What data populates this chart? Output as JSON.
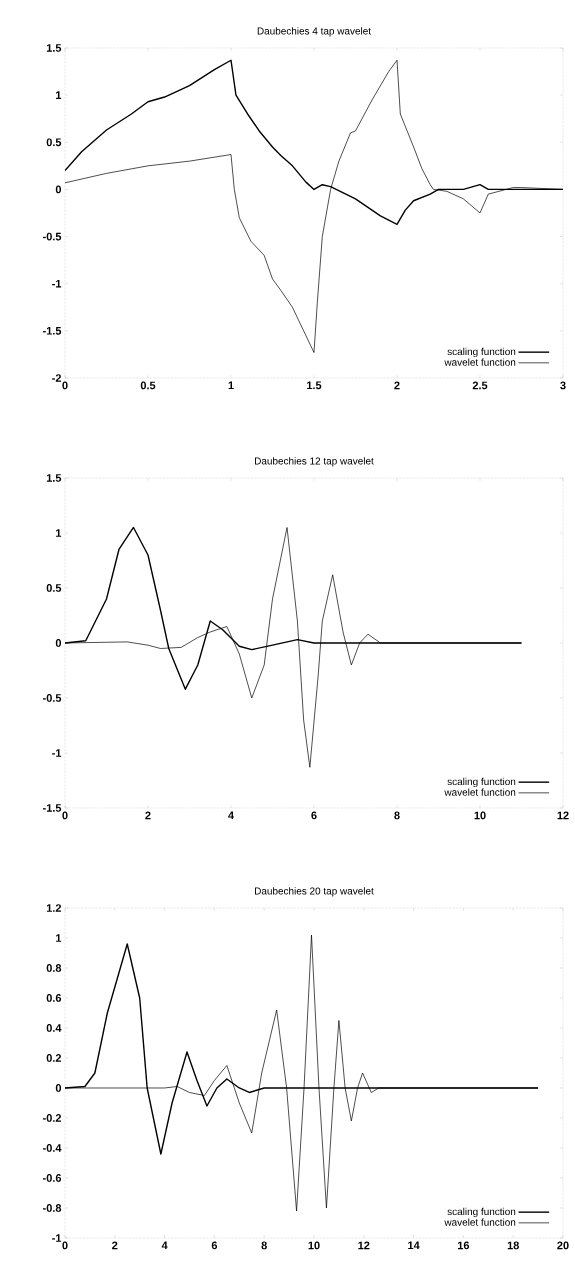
{
  "chart_data": [
    {
      "type": "line",
      "title": "Daubechies 4 tap wavelet",
      "xlim": [
        0,
        3
      ],
      "ylim": [
        -2,
        1.5
      ],
      "xticks": [
        0,
        0.5,
        1,
        1.5,
        2,
        2.5,
        3
      ],
      "yticks": [
        -2,
        -1.5,
        -1,
        -0.5,
        0,
        0.5,
        1,
        1.5
      ],
      "legend": "bottom right",
      "series": [
        {
          "name": "scaling function",
          "color": "#000000",
          "x": [
            0,
            0.1,
            0.25,
            0.4,
            0.5,
            0.6,
            0.75,
            0.9,
            1.0,
            1.03,
            1.1,
            1.17,
            1.25,
            1.3,
            1.37,
            1.45,
            1.5,
            1.55,
            1.6,
            1.75,
            1.9,
            2.0,
            2.05,
            2.1,
            2.2,
            2.25,
            2.4,
            2.5,
            2.55,
            2.75,
            3
          ],
          "values": [
            0.2,
            0.4,
            0.63,
            0.8,
            0.93,
            0.98,
            1.1,
            1.27,
            1.37,
            1.0,
            0.8,
            0.62,
            0.45,
            0.36,
            0.25,
            0.08,
            0.0,
            0.05,
            0.03,
            -0.1,
            -0.28,
            -0.37,
            -0.22,
            -0.12,
            -0.05,
            0,
            0,
            0.05,
            0,
            0,
            0
          ]
        },
        {
          "name": "wavelet function",
          "color": "#000000",
          "x": [
            0,
            0.25,
            0.5,
            0.75,
            1.0,
            1.02,
            1.05,
            1.12,
            1.2,
            1.25,
            1.3,
            1.37,
            1.5,
            1.52,
            1.55,
            1.6,
            1.65,
            1.72,
            1.75,
            1.85,
            1.95,
            2.0,
            2.02,
            2.1,
            2.15,
            2.2,
            2.22,
            2.3,
            2.4,
            2.5,
            2.55,
            2.7,
            2.75,
            3
          ],
          "values": [
            0.07,
            0.17,
            0.25,
            0.3,
            0.37,
            0.0,
            -0.3,
            -0.55,
            -0.7,
            -0.95,
            -1.07,
            -1.25,
            -1.73,
            -1.2,
            -0.5,
            0.0,
            0.3,
            0.6,
            0.62,
            0.95,
            1.25,
            1.37,
            0.8,
            0.45,
            0.22,
            0.05,
            0,
            -0.02,
            -0.1,
            -0.25,
            -0.05,
            0.02,
            0.02,
            0
          ]
        }
      ]
    },
    {
      "type": "line",
      "title": "Daubechies 12 tap wavelet",
      "xlim": [
        0,
        12
      ],
      "ylim": [
        -1.5,
        1.5
      ],
      "xticks": [
        0,
        2,
        4,
        6,
        8,
        10,
        12
      ],
      "yticks": [
        -1.5,
        -1,
        -0.5,
        0,
        0.5,
        1,
        1.5
      ],
      "legend": "bottom right",
      "series": [
        {
          "name": "scaling function",
          "color": "#000000",
          "x": [
            0,
            0.5,
            1.0,
            1.3,
            1.65,
            2.0,
            2.3,
            2.5,
            2.9,
            3.2,
            3.5,
            3.8,
            4.2,
            4.5,
            5.0,
            5.6,
            6.0,
            7,
            8,
            11
          ],
          "values": [
            0,
            0.02,
            0.4,
            0.85,
            1.05,
            0.8,
            0.3,
            -0.05,
            -0.42,
            -0.2,
            0.2,
            0.12,
            -0.03,
            -0.06,
            -0.02,
            0.03,
            0.0,
            0,
            0,
            0
          ]
        },
        {
          "name": "wavelet function",
          "color": "#000000",
          "x": [
            0,
            1.5,
            2.0,
            2.3,
            2.8,
            3.2,
            3.5,
            3.9,
            4.2,
            4.5,
            4.8,
            5.0,
            5.35,
            5.6,
            5.75,
            5.9,
            6.1,
            6.2,
            6.45,
            6.7,
            6.9,
            7.1,
            7.3,
            7.6,
            8,
            11
          ],
          "values": [
            0,
            0.01,
            -0.02,
            -0.05,
            -0.04,
            0.05,
            0.1,
            0.15,
            -0.1,
            -0.5,
            -0.2,
            0.4,
            1.05,
            0.2,
            -0.7,
            -1.13,
            -0.3,
            0.2,
            0.62,
            0.1,
            -0.2,
            0.0,
            0.08,
            0.0,
            0,
            0
          ]
        }
      ]
    },
    {
      "type": "line",
      "title": "Daubechies 20 tap wavelet",
      "xlim": [
        0,
        20
      ],
      "ylim": [
        -1,
        1.2
      ],
      "xticks": [
        0,
        2,
        4,
        6,
        8,
        10,
        12,
        14,
        16,
        18,
        20
      ],
      "yticks": [
        -1,
        -0.8,
        -0.6,
        -0.4,
        -0.2,
        0,
        0.2,
        0.4,
        0.6,
        0.8,
        1,
        1.2
      ],
      "legend": "bottom right",
      "series": [
        {
          "name": "scaling function",
          "color": "#000000",
          "x": [
            0,
            0.8,
            1.2,
            1.7,
            2.5,
            3.0,
            3.3,
            3.85,
            4.3,
            4.9,
            5.3,
            5.7,
            6.1,
            6.5,
            7.0,
            7.4,
            8.0,
            19
          ],
          "values": [
            0,
            0.01,
            0.1,
            0.5,
            0.96,
            0.6,
            0.0,
            -0.44,
            -0.1,
            0.24,
            0.05,
            -0.12,
            0.0,
            0.06,
            0.0,
            -0.03,
            0.0,
            0
          ]
        },
        {
          "name": "wavelet function",
          "color": "#000000",
          "x": [
            0,
            4,
            4.5,
            5,
            5.6,
            6.0,
            6.5,
            7.0,
            7.5,
            7.9,
            8.5,
            8.9,
            9.3,
            9.6,
            9.9,
            10.2,
            10.5,
            10.8,
            11.0,
            11.25,
            11.5,
            11.75,
            11.95,
            12.3,
            12.6,
            19
          ],
          "values": [
            0,
            0,
            0.01,
            -0.03,
            -0.05,
            0.05,
            0.15,
            -0.1,
            -0.3,
            0.1,
            0.52,
            0.0,
            -0.82,
            0.0,
            1.02,
            0.0,
            -0.8,
            0.0,
            0.45,
            0.0,
            -0.22,
            0.0,
            0.1,
            -0.03,
            0,
            0
          ]
        }
      ]
    }
  ]
}
